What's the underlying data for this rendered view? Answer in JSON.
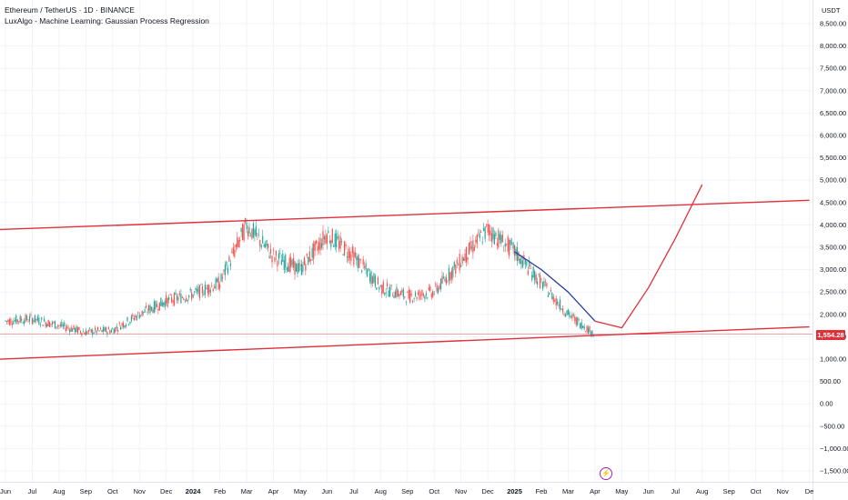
{
  "header": {
    "symbol_line": "Ethereum / TetherUS · 1D · BINANCE",
    "indicator_line": "LuxAlgo - Machine Learning: Gaussian Process Regression"
  },
  "price_axis": {
    "currency": "USDT",
    "labels": [
      "8,500.00",
      "8,000.00",
      "7,500.00",
      "7,000.00",
      "6,500.00",
      "6,000.00",
      "5,500.00",
      "5,000.00",
      "4,500.00",
      "4,000.00",
      "3,500.00",
      "3,000.00",
      "2,500.00",
      "2,000.00",
      "1,500.00",
      "1,000.00",
      "500.00",
      "0.00",
      "−500.00",
      "−1,000.00",
      "−1,500.00"
    ],
    "values": [
      8500,
      8000,
      7500,
      7000,
      6500,
      6000,
      5500,
      5000,
      4500,
      4000,
      3500,
      3000,
      2500,
      2000,
      1500,
      1000,
      500,
      0,
      -500,
      -1000,
      -1500
    ],
    "current_price": "1,554.28",
    "current_price_value": 1554.28
  },
  "time_axis": {
    "labels": [
      "Jun",
      "Jul",
      "Aug",
      "Sep",
      "Oct",
      "Nov",
      "Dec",
      "2024",
      "Feb",
      "Mar",
      "Apr",
      "May",
      "Jun",
      "Jul",
      "Aug",
      "Sep",
      "Oct",
      "Nov",
      "Dec",
      "2025",
      "Feb",
      "Mar",
      "Apr",
      "May",
      "Jun",
      "Jul",
      "Aug",
      "Sep",
      "Oct",
      "Nov",
      "De"
    ]
  },
  "colors": {
    "up": "#26a69a",
    "down": "#ef5350",
    "channel": "#e0303a",
    "regression": "#2a3ba0",
    "grid": "#f0f3fa",
    "event": "#9c27b0"
  },
  "event_icon": "lightning-icon",
  "chart_data": {
    "type": "line",
    "title": "Ethereum / TetherUS · 1D · BINANCE",
    "ylabel": "USDT",
    "ylim": [
      -1700,
      8800
    ],
    "series": [
      {
        "name": "ETHUSDT",
        "x": [
          "2023-06",
          "2023-07",
          "2023-08",
          "2023-09",
          "2023-10",
          "2023-11",
          "2023-12",
          "2024-01",
          "2024-02",
          "2024-03",
          "2024-04",
          "2024-05",
          "2024-06",
          "2024-07",
          "2024-08",
          "2024-09",
          "2024-10",
          "2024-11",
          "2024-12",
          "2025-01",
          "2025-02",
          "2025-03",
          "2025-04"
        ],
        "values": [
          1850,
          1900,
          1750,
          1600,
          1650,
          2000,
          2300,
          2450,
          2700,
          4000,
          3300,
          3000,
          3800,
          3300,
          2600,
          2400,
          2500,
          3200,
          3900,
          3400,
          2700,
          2000,
          1554
        ]
      },
      {
        "name": "Gaussian Process Regression",
        "x": [
          "2025-01",
          "2025-02",
          "2025-03",
          "2025-04",
          "2025-05",
          "2025-06",
          "2025-07",
          "2025-08"
        ],
        "values": [
          3400,
          3000,
          2500,
          1850,
          1700,
          2600,
          3700,
          4900
        ]
      }
    ],
    "channel": {
      "upper": {
        "x": [
          "2023-05",
          "2025-12"
        ],
        "values": [
          3880,
          4550
        ]
      },
      "lower": {
        "x": [
          "2023-05",
          "2025-12"
        ],
        "values": [
          980,
          1720
        ]
      }
    }
  }
}
